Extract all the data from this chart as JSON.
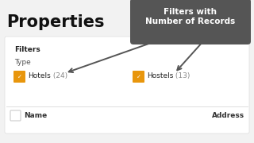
{
  "bg_color": "#f2f2f2",
  "title": "Properties",
  "title_fontsize": 15,
  "title_color": "#111111",
  "card_color": "#ffffff",
  "filters_label": "Filters",
  "type_label": "Type",
  "checkbox_color": "#e8960c",
  "item1_label": "Hotels",
  "item1_count": " (24)",
  "item2_label": "Hostels",
  "item2_count": " (13)",
  "count_color": "#888888",
  "name_label": "Name",
  "address_label": "Address",
  "tooltip_bg": "#555555",
  "tooltip_text": "Filters with\nNumber of Records",
  "tooltip_fontsize": 7.5,
  "tooltip_color": "#ffffff",
  "arrow_color": "#555555",
  "separator_color": "#dddddd",
  "item_fontsize": 6.5,
  "label_fontsize": 6.5
}
